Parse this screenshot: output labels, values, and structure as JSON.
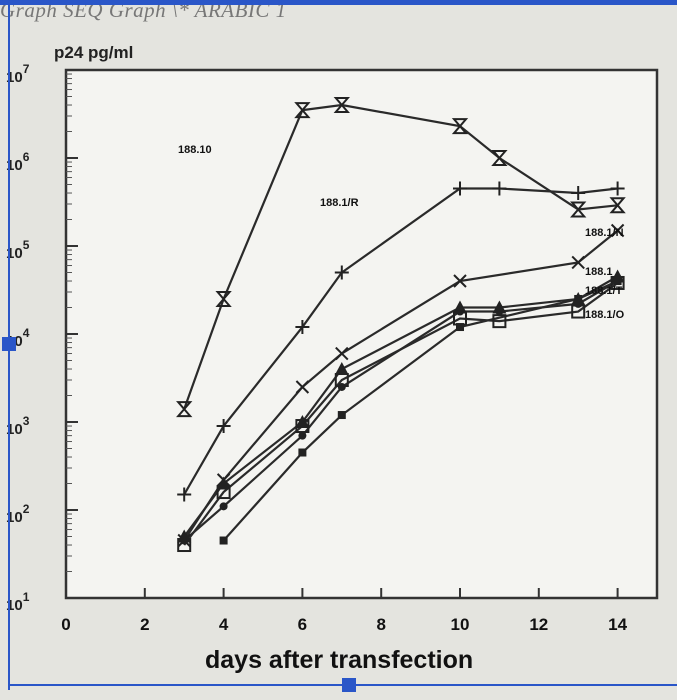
{
  "field_code": "Graph  SEQ Graph \\* ARABIC 1",
  "chart_data": {
    "type": "line",
    "y_scale": "log",
    "ylabel": "p24 pg/ml",
    "xlabel": "days after transfection",
    "xlim": [
      0,
      15
    ],
    "ylim": [
      10,
      10000000
    ],
    "x_ticks": [
      "0",
      "2",
      "4",
      "6",
      "8",
      "10",
      "12",
      "14"
    ],
    "y_ticks": [
      {
        "base": "10",
        "exp": "1"
      },
      {
        "base": "10",
        "exp": "2"
      },
      {
        "base": "10",
        "exp": "3"
      },
      {
        "base": "10",
        "exp": "4"
      },
      {
        "base": "10",
        "exp": "5"
      },
      {
        "base": "10",
        "exp": "6"
      },
      {
        "base": "10",
        "exp": "7"
      }
    ],
    "grid": false,
    "series": [
      {
        "name": "188.10",
        "marker": "hourglass",
        "x": [
          3,
          4,
          6,
          7,
          10,
          11,
          13,
          14
        ],
        "y": [
          1400,
          25000,
          3500000,
          4000000,
          2300000,
          1000000,
          260000,
          290000
        ]
      },
      {
        "name": "188.1/R",
        "marker": "plus",
        "x": [
          3,
          4,
          6,
          7,
          10,
          11,
          13,
          14
        ],
        "y": [
          150,
          900,
          12000,
          50000,
          450000,
          450000,
          400000,
          450000
        ]
      },
      {
        "name": "188.1/N",
        "marker": "x",
        "x": [
          3,
          4,
          6,
          7,
          10,
          13,
          14
        ],
        "y": [
          45,
          220,
          2500,
          6000,
          40000,
          65000,
          150000
        ]
      },
      {
        "name": "188.1",
        "marker": "triangle",
        "x": [
          3,
          4,
          6,
          7,
          10,
          11,
          13,
          14
        ],
        "y": [
          50,
          200,
          1000,
          4000,
          20000,
          20000,
          25000,
          45000
        ]
      },
      {
        "name": "188.1/T",
        "marker": "dot",
        "x": [
          3,
          4,
          6,
          7,
          10,
          11,
          13,
          14
        ],
        "y": [
          45,
          110,
          700,
          2500,
          18000,
          18000,
          22000,
          40000
        ]
      },
      {
        "name": "188.1/O",
        "marker": "square",
        "x": [
          3,
          4,
          6,
          7,
          10,
          11,
          13,
          14
        ],
        "y": [
          40,
          160,
          900,
          3000,
          15000,
          14000,
          18000,
          38000
        ]
      },
      {
        "name": "",
        "marker": "square-filled",
        "x": [
          4,
          6,
          7,
          10,
          13,
          14
        ],
        "y": [
          45,
          450,
          1200,
          12000,
          25000,
          40000
        ]
      }
    ]
  }
}
